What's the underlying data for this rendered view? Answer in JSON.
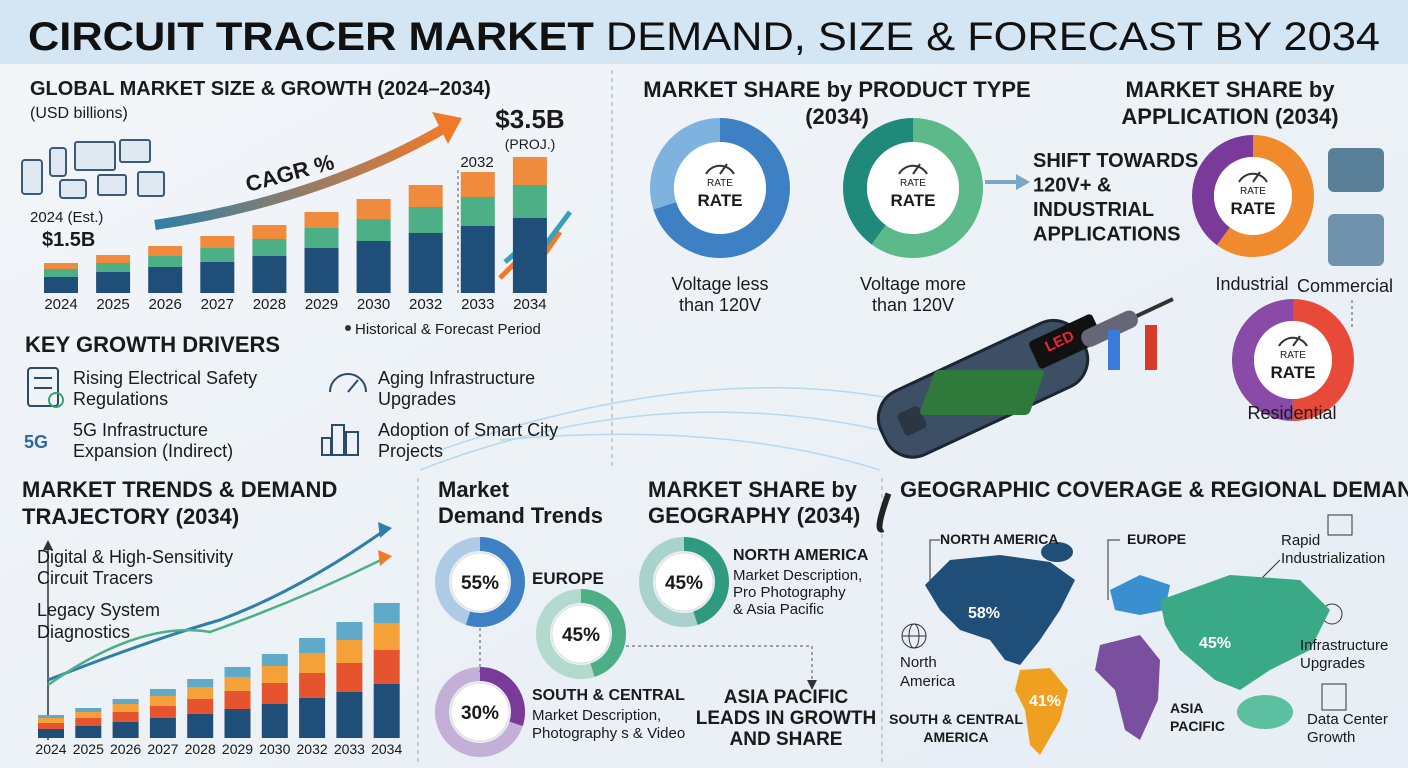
{
  "header": {
    "title_bold": "CIRCUIT TRACER MARKET",
    "title_rest": "DEMAND, SIZE & FORECAST BY 2034"
  },
  "global_market": {
    "title": "GLOBAL MARKET SIZE & GROWTH (2024–2034)",
    "unit": "(USD billions)",
    "start_year": "2024 (Est.)",
    "start_value": "$1.5B",
    "cagr": "CAGR %",
    "end_year": "2032",
    "end_value": "$3.5B",
    "end_note": "(PROJ.)",
    "legend": "Historical & Forecast Period",
    "chart_data": {
      "type": "bar",
      "stacked": true,
      "categories": [
        "2024",
        "2025",
        "2026",
        "2027",
        "2028",
        "2029",
        "2030",
        "2032",
        "2033",
        "2034"
      ],
      "series": [
        {
          "color": "#1f4e79",
          "values": [
            16,
            21,
            26,
            31,
            37,
            45,
            52,
            60,
            67,
            75
          ]
        },
        {
          "color": "#4caf86",
          "values": [
            8,
            9,
            11,
            14,
            17,
            20,
            22,
            26,
            29,
            33
          ]
        },
        {
          "color": "#f08a3c",
          "values": [
            6,
            8,
            10,
            12,
            14,
            16,
            20,
            22,
            25,
            28
          ]
        }
      ]
    }
  },
  "drivers": {
    "title": "KEY GROWTH DRIVERS",
    "icon_5g": "5G",
    "items": [
      {
        "lines": [
          "Rising Electrical Safety",
          "Regulations"
        ]
      },
      {
        "lines": [
          "Aging Infrastructure",
          "Upgrades"
        ]
      },
      {
        "lines": [
          "5G Infrastructure",
          "Expansion (Indirect)"
        ]
      },
      {
        "lines": [
          "Adoption of Smart City",
          "Projects"
        ]
      }
    ]
  },
  "product_type": {
    "title": [
      "MARKET SHARE by PRODUCT TYPE",
      "(2034)"
    ],
    "gauge": "RATE",
    "center": "RATE",
    "donuts": [
      {
        "label": [
          "Voltage less",
          "than 120V"
        ],
        "colors": [
          "#3d80c4",
          "#7fb3df"
        ],
        "values": [
          70,
          30
        ]
      },
      {
        "label": [
          "Voltage more",
          "than 120V"
        ],
        "colors": [
          "#5bb98a",
          "#1f8a7a"
        ],
        "values": [
          60,
          40
        ]
      }
    ],
    "shift": [
      "SHIFT TOWARDS",
      "120V+ &",
      "INDUSTRIAL",
      "APPLICATIONS"
    ]
  },
  "application": {
    "title": [
      "MARKET SHARE by",
      "APPLICATION (2034)"
    ],
    "gauge": "RATE",
    "center": "RATE",
    "labels": [
      "Industrial",
      "Commercial",
      "Residential"
    ],
    "donuts": [
      {
        "colors": [
          "#f08a2c",
          "#7a3a9a"
        ],
        "values": [
          60,
          40
        ]
      },
      {
        "colors": [
          "#e84a3a",
          "#8a4aa8"
        ],
        "values": [
          50,
          50
        ]
      }
    ]
  },
  "device": {
    "screen": "LED"
  },
  "trends": {
    "title": [
      "MARKET TRENDS & DEMAND",
      "TRAJECTORY (2034)"
    ],
    "line_labels": [
      [
        "Digital & High-Sensitivity",
        "Circuit Tracers"
      ],
      [
        "Legacy System",
        "Diagnostics"
      ]
    ],
    "chart_data": {
      "type": "bar",
      "stacked": true,
      "categories": [
        "2024",
        "2025",
        "2026",
        "2027",
        "2028",
        "2029",
        "2030",
        "2032",
        "2033",
        "2034"
      ],
      "series": [
        {
          "color": "#1f4e79",
          "values": [
            9,
            12,
            16,
            20,
            24,
            29,
            34,
            40,
            46,
            54
          ]
        },
        {
          "color": "#e5532f",
          "values": [
            6,
            8,
            10,
            12,
            15,
            18,
            21,
            25,
            29,
            34
          ]
        },
        {
          "color": "#f4a13a",
          "values": [
            5,
            6,
            8,
            10,
            12,
            14,
            17,
            20,
            23,
            27
          ]
        },
        {
          "color": "#5fa9c9",
          "values": [
            3,
            4,
            5,
            7,
            8,
            10,
            12,
            15,
            18,
            20
          ]
        }
      ]
    }
  },
  "demand": {
    "title": [
      "Market",
      "Demand Trends"
    ],
    "values": [
      55,
      45,
      30
    ],
    "value_labels": [
      "55%",
      "45%",
      "30%"
    ],
    "colors": [
      "#3d80c4",
      "#4caf86",
      "#7a3a9a"
    ],
    "europe": "EUROPE",
    "south": "SOUTH & CENTRAL",
    "south_desc": [
      "Market Description,",
      "Photography s & Video"
    ]
  },
  "geography": {
    "title": [
      "MARKET SHARE by",
      "GEOGRAPHY (2034)"
    ],
    "values": [
      45
    ],
    "value_labels": [
      "45%"
    ],
    "colors": [
      "#2f9a80"
    ],
    "region": "NORTH AMERICA",
    "desc": [
      "Market Description,",
      "Pro Photography",
      "& Asia Pacific"
    ],
    "callout": [
      "ASIA PACIFIC",
      "LEADS IN GROWTH",
      "AND SHARE"
    ]
  },
  "map": {
    "title": "GEOGRAPHIC COVERAGE & REGIONAL DEMAND",
    "values": [
      58,
      41,
      45
    ],
    "value_labels": [
      "58%",
      "41%",
      "45%"
    ],
    "colors": [
      "#1f4e79",
      "#f0a020",
      "#3aaa86"
    ],
    "north_america": "NORTH AMERICA",
    "europe": "EUROPE",
    "rapid": [
      "Rapid",
      "Industrialization"
    ],
    "infra": [
      "Infrastructure",
      "Upgrades"
    ],
    "datacenter": [
      "Data Center",
      "Growth"
    ],
    "na_icon": [
      "North",
      "America"
    ],
    "south": [
      "SOUTH & CENTRAL",
      "AMERICA"
    ],
    "asia": [
      "ASIA",
      "PACIFIC"
    ]
  }
}
